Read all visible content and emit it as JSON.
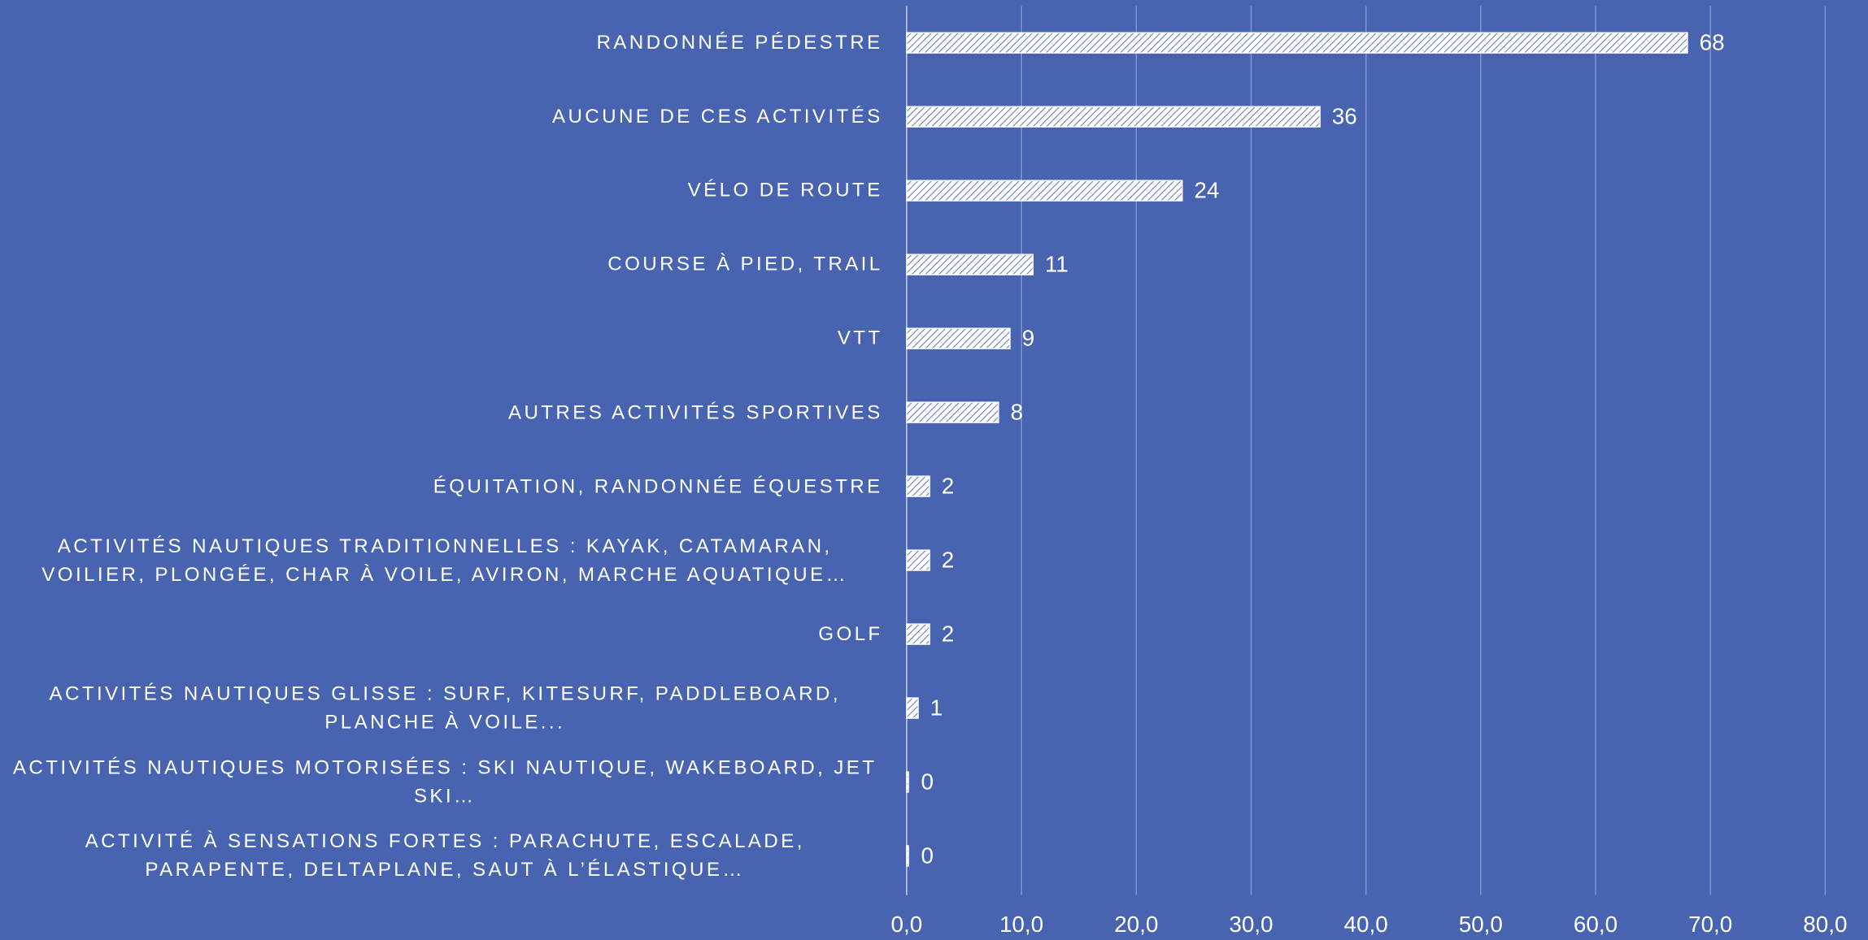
{
  "chart_data": {
    "type": "barh",
    "categories": [
      "RANDONNÉE PÉDESTRE",
      "AUCUNE DE CES ACTIVITÉS",
      "VÉLO DE ROUTE",
      "COURSE À PIED, TRAIL",
      "VTT",
      "AUTRES ACTIVITÉS SPORTIVES",
      "ÉQUITATION, RANDONNÉE ÉQUESTRE",
      "ACTIVITÉS NAUTIQUES TRADITIONNELLES : KAYAK, CATAMARAN, VOILIER, PLONGÉE, CHAR À VOILE, AVIRON, MARCHE AQUATIQUE…",
      "GOLF",
      "ACTIVITÉS NAUTIQUES GLISSE : SURF, KITESURF, PADDLEBOARD, PLANCHE À VOILE...",
      "ACTIVITÉS NAUTIQUES MOTORISÉES : SKI NAUTIQUE, WAKEBOARD, JET SKI…",
      "ACTIVITÉ À SENSATIONS FORTES : PARACHUTE, ESCALADE, PARAPENTE, DELTAPLANE, SAUT À L’ÉLASTIQUE…"
    ],
    "values": [
      68,
      36,
      24,
      11,
      9,
      8,
      2,
      2,
      2,
      1,
      0,
      0
    ],
    "color": "#ffffff",
    "xlim": [
      0,
      80
    ],
    "xticks": [
      {
        "value": 0,
        "label": "0,0"
      },
      {
        "value": 10,
        "label": "10,0"
      },
      {
        "value": 20,
        "label": "20,0"
      },
      {
        "value": 30,
        "label": "30,0"
      },
      {
        "value": 40,
        "label": "40,0"
      },
      {
        "value": 50,
        "label": "50,0"
      },
      {
        "value": 60,
        "label": "60,0"
      },
      {
        "value": 70,
        "label": "70,0"
      },
      {
        "value": 80,
        "label": "80,0"
      }
    ],
    "grid": true
  }
}
